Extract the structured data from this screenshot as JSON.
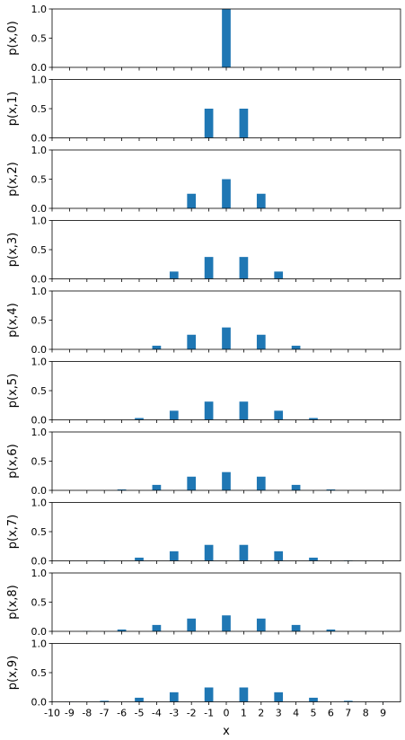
{
  "chart_data": {
    "type": "bar",
    "layout": "stacked-subplots",
    "shared_x": true,
    "xlabel": "x",
    "x_ticks": [
      -10,
      -9,
      -8,
      -7,
      -6,
      -5,
      -4,
      -3,
      -2,
      -1,
      0,
      1,
      2,
      3,
      4,
      5,
      6,
      7,
      8,
      9
    ],
    "xlim": [
      -10,
      10
    ],
    "ylim": [
      0.0,
      1.0
    ],
    "y_ticks": [
      "0.0",
      "0.5",
      "1.0"
    ],
    "bar_color": "#1f77b4",
    "panels": [
      {
        "ylabel": "p(x,0)",
        "x": [
          0
        ],
        "values": [
          1.0
        ]
      },
      {
        "ylabel": "p(x,1)",
        "x": [
          -1,
          1
        ],
        "values": [
          0.5,
          0.5
        ]
      },
      {
        "ylabel": "p(x,2)",
        "x": [
          -2,
          0,
          2
        ],
        "values": [
          0.25,
          0.5,
          0.25
        ]
      },
      {
        "ylabel": "p(x,3)",
        "x": [
          -3,
          -1,
          1,
          3
        ],
        "values": [
          0.125,
          0.375,
          0.375,
          0.125
        ]
      },
      {
        "ylabel": "p(x,4)",
        "x": [
          -4,
          -2,
          0,
          2,
          4
        ],
        "values": [
          0.0625,
          0.25,
          0.375,
          0.25,
          0.0625
        ]
      },
      {
        "ylabel": "p(x,5)",
        "x": [
          -5,
          -3,
          -1,
          1,
          3,
          5
        ],
        "values": [
          0.03125,
          0.15625,
          0.3125,
          0.3125,
          0.15625,
          0.03125
        ]
      },
      {
        "ylabel": "p(x,6)",
        "x": [
          -6,
          -4,
          -2,
          0,
          2,
          4,
          6
        ],
        "values": [
          0.015625,
          0.09375,
          0.234375,
          0.3125,
          0.234375,
          0.09375,
          0.015625
        ]
      },
      {
        "ylabel": "p(x,7)",
        "x": [
          -7,
          -5,
          -3,
          -1,
          1,
          3,
          5,
          7
        ],
        "values": [
          0.0078125,
          0.0546875,
          0.1640625,
          0.2734375,
          0.2734375,
          0.1640625,
          0.0546875,
          0.0078125
        ]
      },
      {
        "ylabel": "p(x,8)",
        "x": [
          -8,
          -6,
          -4,
          -2,
          0,
          2,
          4,
          6,
          8
        ],
        "values": [
          0.00390625,
          0.03125,
          0.109375,
          0.21875,
          0.2734375,
          0.21875,
          0.109375,
          0.03125,
          0.00390625
        ]
      },
      {
        "ylabel": "p(x,9)",
        "x": [
          -9,
          -7,
          -5,
          -3,
          -1,
          1,
          3,
          5,
          7,
          9
        ],
        "values": [
          0.001953125,
          0.017578125,
          0.0703125,
          0.1640625,
          0.24609375,
          0.24609375,
          0.1640625,
          0.0703125,
          0.017578125,
          0.001953125
        ]
      }
    ]
  }
}
